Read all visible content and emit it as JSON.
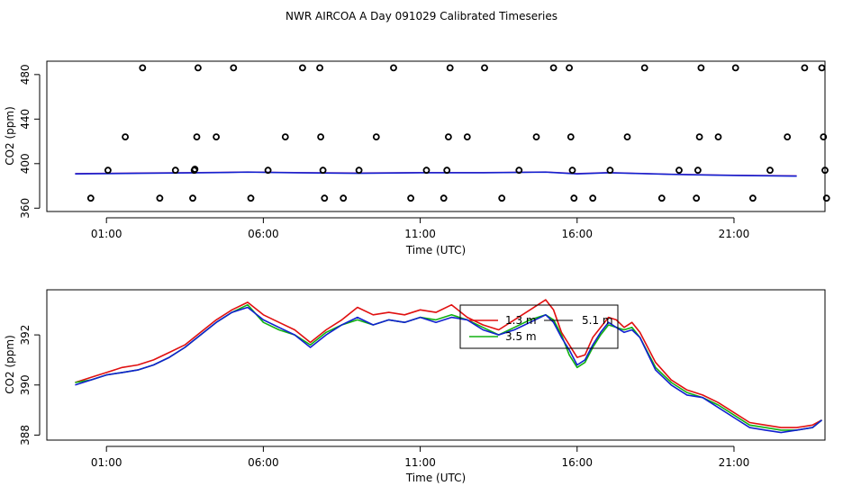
{
  "title": "NWR AIRCOA A  Day 091029  Calibrated Timeseries",
  "colors": {
    "frame": "#000000",
    "red": "#e01010",
    "green": "#10b010",
    "blue": "#1020d0",
    "purple": "#8020a0"
  },
  "chart_data": [
    {
      "type": "scatter",
      "xlabel": "Time (UTC)",
      "ylabel": "CO2 (ppm)",
      "xlim": [
        -0.9,
        23.9
      ],
      "ylim": [
        357,
        492
      ],
      "x_ticks": [
        1,
        6,
        11,
        16,
        21
      ],
      "x_tick_labels": [
        "01:00",
        "06:00",
        "11:00",
        "16:00",
        "21:00"
      ],
      "y_ticks": [
        360,
        400,
        440,
        480
      ],
      "y_tick_labels": [
        "360",
        "400",
        "440",
        "480"
      ],
      "points": [
        {
          "x": 0.5,
          "y": 369
        },
        {
          "x": 1.05,
          "y": 394
        },
        {
          "x": 1.6,
          "y": 424
        },
        {
          "x": 2.15,
          "y": 486
        },
        {
          "x": 2.7,
          "y": 369
        },
        {
          "x": 3.2,
          "y": 394
        },
        {
          "x": 3.75,
          "y": 369
        },
        {
          "x": 3.8,
          "y": 394
        },
        {
          "x": 3.82,
          "y": 395
        },
        {
          "x": 3.88,
          "y": 424
        },
        {
          "x": 3.92,
          "y": 486
        },
        {
          "x": 4.5,
          "y": 424
        },
        {
          "x": 5.05,
          "y": 486
        },
        {
          "x": 5.6,
          "y": 369
        },
        {
          "x": 6.15,
          "y": 394
        },
        {
          "x": 6.7,
          "y": 424
        },
        {
          "x": 7.25,
          "y": 486
        },
        {
          "x": 7.8,
          "y": 486
        },
        {
          "x": 7.83,
          "y": 424
        },
        {
          "x": 7.9,
          "y": 394
        },
        {
          "x": 7.95,
          "y": 369
        },
        {
          "x": 8.55,
          "y": 369
        },
        {
          "x": 9.05,
          "y": 394
        },
        {
          "x": 9.6,
          "y": 424
        },
        {
          "x": 10.15,
          "y": 486
        },
        {
          "x": 10.7,
          "y": 369
        },
        {
          "x": 11.2,
          "y": 394
        },
        {
          "x": 11.75,
          "y": 369
        },
        {
          "x": 11.85,
          "y": 394
        },
        {
          "x": 11.9,
          "y": 424
        },
        {
          "x": 11.95,
          "y": 486
        },
        {
          "x": 12.5,
          "y": 424
        },
        {
          "x": 13.05,
          "y": 486
        },
        {
          "x": 13.6,
          "y": 369
        },
        {
          "x": 14.15,
          "y": 394
        },
        {
          "x": 14.7,
          "y": 424
        },
        {
          "x": 15.25,
          "y": 486
        },
        {
          "x": 15.75,
          "y": 486
        },
        {
          "x": 15.8,
          "y": 424
        },
        {
          "x": 15.85,
          "y": 394
        },
        {
          "x": 15.9,
          "y": 369
        },
        {
          "x": 16.5,
          "y": 369
        },
        {
          "x": 17.05,
          "y": 394
        },
        {
          "x": 17.6,
          "y": 424
        },
        {
          "x": 18.15,
          "y": 486
        },
        {
          "x": 18.7,
          "y": 369
        },
        {
          "x": 19.25,
          "y": 394
        },
        {
          "x": 19.8,
          "y": 369
        },
        {
          "x": 19.85,
          "y": 394
        },
        {
          "x": 19.9,
          "y": 424
        },
        {
          "x": 19.95,
          "y": 486
        },
        {
          "x": 20.5,
          "y": 424
        },
        {
          "x": 21.05,
          "y": 486
        },
        {
          "x": 21.6,
          "y": 369
        },
        {
          "x": 22.15,
          "y": 394
        },
        {
          "x": 22.7,
          "y": 424
        },
        {
          "x": 23.25,
          "y": 486
        },
        {
          "x": 23.8,
          "y": 486
        },
        {
          "x": 23.85,
          "y": 424
        },
        {
          "x": 23.9,
          "y": 394
        },
        {
          "x": 23.95,
          "y": 369
        }
      ],
      "series": [
        {
          "color": "purple",
          "x": [
            0,
            2,
            4,
            5.5,
            7,
            9,
            11,
            13,
            15,
            16,
            17,
            19,
            21,
            23
          ],
          "y": [
            391,
            391.5,
            392,
            392.5,
            392,
            391.5,
            392,
            392,
            392.5,
            391,
            392,
            390.5,
            389.5,
            389
          ]
        },
        {
          "color": "blue",
          "x": [
            0,
            2,
            4,
            5.5,
            7,
            9,
            11,
            13,
            15,
            16,
            17,
            19,
            21,
            23
          ],
          "y": [
            390.8,
            391.3,
            391.8,
            392.3,
            391.8,
            391.3,
            391.8,
            391.8,
            392.3,
            390.8,
            391.8,
            390.3,
            389.3,
            388.8
          ]
        }
      ]
    },
    {
      "type": "line",
      "xlabel": "Time (UTC)",
      "ylabel": "CO2 (ppm)",
      "xlim": [
        -0.9,
        23.9
      ],
      "ylim": [
        387.8,
        393.8
      ],
      "x_ticks": [
        1,
        6,
        11,
        16,
        21
      ],
      "x_tick_labels": [
        "01:00",
        "06:00",
        "11:00",
        "16:00",
        "21:00"
      ],
      "y_ticks": [
        388,
        390,
        392
      ],
      "y_tick_labels": [
        "388",
        "390",
        "392"
      ],
      "x": [
        0,
        0.5,
        1,
        1.5,
        2,
        2.5,
        3,
        3.5,
        4,
        4.5,
        5,
        5.5,
        6,
        6.5,
        7,
        7.5,
        8,
        8.5,
        9,
        9.5,
        10,
        10.5,
        11,
        11.5,
        12,
        12.5,
        13,
        13.5,
        14,
        14.5,
        15,
        15.25,
        15.5,
        15.75,
        16,
        16.25,
        16.5,
        16.75,
        17,
        17.25,
        17.5,
        17.75,
        18,
        18.5,
        19,
        19.5,
        20,
        20.5,
        21,
        21.5,
        22,
        22.5,
        23,
        23.5,
        23.8
      ],
      "series": [
        {
          "name": "1.3 m",
          "color": "red",
          "y": [
            390.1,
            390.3,
            390.5,
            390.7,
            390.8,
            391.0,
            391.3,
            391.6,
            392.1,
            392.6,
            393.0,
            393.3,
            392.8,
            392.5,
            392.2,
            391.7,
            392.2,
            392.6,
            393.1,
            392.8,
            392.9,
            392.8,
            393.0,
            392.9,
            393.2,
            392.7,
            392.4,
            392.2,
            392.6,
            393.0,
            393.4,
            393.0,
            392.1,
            391.6,
            391.1,
            391.2,
            391.9,
            392.3,
            392.7,
            392.6,
            392.3,
            392.5,
            392.1,
            390.9,
            390.2,
            389.8,
            389.6,
            389.3,
            388.9,
            388.5,
            388.4,
            388.3,
            388.3,
            388.4,
            388.6
          ]
        },
        {
          "name": "3.5 m",
          "color": "green",
          "y": [
            390.1,
            390.2,
            390.4,
            390.5,
            390.6,
            390.8,
            391.1,
            391.5,
            392.0,
            392.5,
            392.9,
            393.2,
            392.5,
            392.2,
            392.0,
            391.6,
            392.1,
            392.4,
            392.6,
            392.4,
            392.6,
            392.5,
            392.7,
            392.6,
            392.8,
            392.6,
            392.3,
            392.0,
            392.3,
            392.6,
            392.8,
            392.6,
            392.0,
            391.2,
            390.7,
            390.9,
            391.5,
            392.0,
            392.4,
            392.3,
            392.2,
            392.3,
            391.9,
            390.7,
            390.1,
            389.7,
            389.5,
            389.2,
            388.8,
            388.4,
            388.3,
            388.2,
            388.2,
            388.3,
            388.6
          ]
        },
        {
          "name": "5.1 m",
          "color": "blue",
          "y": [
            390.0,
            390.2,
            390.4,
            390.5,
            390.6,
            390.8,
            391.1,
            391.5,
            392.0,
            392.5,
            392.9,
            393.1,
            392.6,
            392.3,
            392.0,
            391.5,
            392.0,
            392.4,
            392.7,
            392.4,
            392.6,
            392.5,
            392.7,
            392.5,
            392.7,
            392.6,
            392.2,
            392.0,
            392.2,
            392.5,
            392.8,
            392.5,
            391.9,
            391.4,
            390.8,
            391.0,
            391.6,
            392.1,
            392.5,
            392.3,
            392.1,
            392.2,
            391.9,
            390.6,
            390.0,
            389.6,
            389.5,
            389.1,
            388.7,
            388.3,
            388.2,
            388.1,
            388.2,
            388.3,
            388.6
          ]
        }
      ]
    }
  ]
}
